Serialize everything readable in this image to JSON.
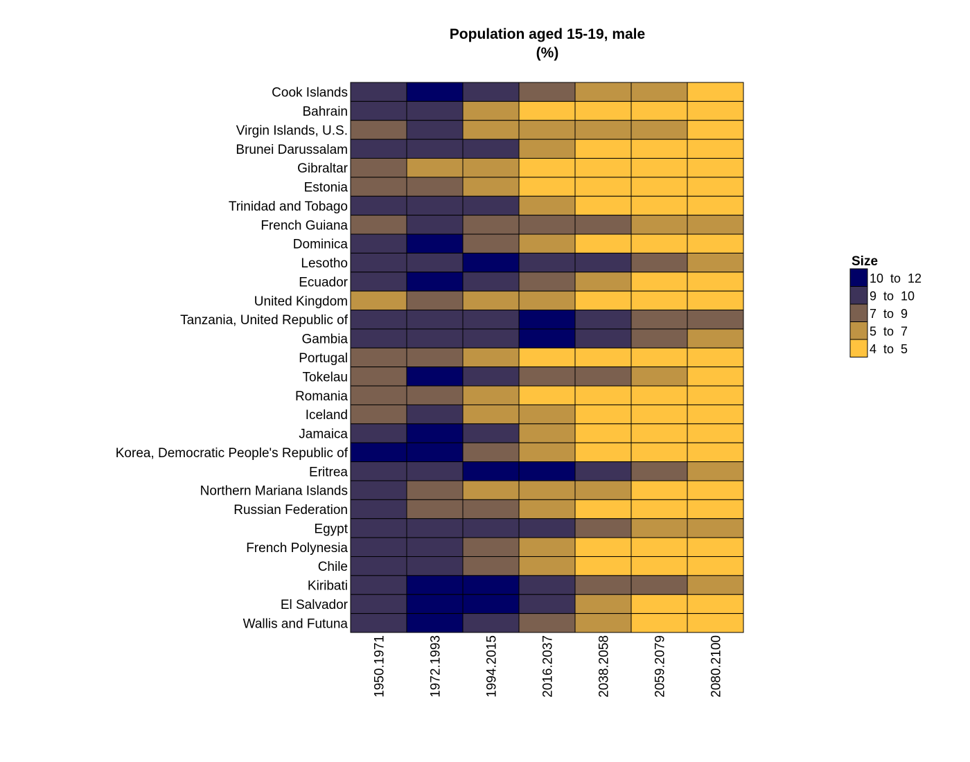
{
  "chart_data": {
    "type": "heatmap",
    "title": "Population aged 15-19, male",
    "subtitle": "(%)",
    "columns": [
      "1950.1971",
      "1972.1993",
      "1994.2015",
      "2016.2037",
      "2038.2058",
      "2059.2079",
      "2080.2100"
    ],
    "rows": [
      "Cook Islands",
      "Bahrain",
      "Virgin Islands, U.S.",
      "Brunei Darussalam",
      "Gibraltar",
      "Estonia",
      "Trinidad and Tobago",
      "French Guiana",
      "Dominica",
      "Lesotho",
      "Ecuador",
      "United Kingdom",
      "Tanzania, United Republic of",
      "Gambia",
      "Portugal",
      "Tokelau",
      "Romania",
      "Iceland",
      "Jamaica",
      "Korea, Democratic People's Republic of",
      "Eritrea",
      "Northern Mariana Islands",
      "Russian Federation",
      "Egypt",
      "French Polynesia",
      "Chile",
      "Kiribati",
      "El Salvador",
      "Wallis and Futuna"
    ],
    "bin_index_values": [
      [
        1,
        0,
        1,
        2,
        3,
        3,
        4
      ],
      [
        1,
        1,
        3,
        4,
        4,
        4,
        4
      ],
      [
        2,
        1,
        3,
        3,
        3,
        3,
        4
      ],
      [
        1,
        1,
        1,
        3,
        4,
        4,
        4
      ],
      [
        2,
        3,
        3,
        4,
        4,
        4,
        4
      ],
      [
        2,
        2,
        3,
        4,
        4,
        4,
        4
      ],
      [
        1,
        1,
        1,
        3,
        4,
        4,
        4
      ],
      [
        2,
        1,
        2,
        2,
        2,
        3,
        3
      ],
      [
        1,
        0,
        2,
        3,
        4,
        4,
        4
      ],
      [
        1,
        1,
        0,
        1,
        1,
        2,
        3
      ],
      [
        1,
        0,
        1,
        2,
        3,
        4,
        4
      ],
      [
        3,
        2,
        3,
        3,
        4,
        4,
        4
      ],
      [
        1,
        1,
        1,
        0,
        1,
        2,
        2
      ],
      [
        1,
        1,
        1,
        0,
        1,
        2,
        3
      ],
      [
        2,
        2,
        3,
        4,
        4,
        4,
        4
      ],
      [
        2,
        0,
        1,
        2,
        2,
        3,
        4
      ],
      [
        2,
        2,
        3,
        4,
        4,
        4,
        4
      ],
      [
        2,
        1,
        3,
        3,
        4,
        4,
        4
      ],
      [
        1,
        0,
        1,
        3,
        4,
        4,
        4
      ],
      [
        0,
        0,
        2,
        3,
        4,
        4,
        4
      ],
      [
        1,
        1,
        0,
        0,
        1,
        2,
        3
      ],
      [
        1,
        2,
        3,
        3,
        3,
        4,
        4
      ],
      [
        1,
        2,
        2,
        3,
        4,
        4,
        4
      ],
      [
        1,
        1,
        1,
        1,
        2,
        3,
        3
      ],
      [
        1,
        1,
        2,
        3,
        4,
        4,
        4
      ],
      [
        1,
        1,
        2,
        3,
        4,
        4,
        4
      ],
      [
        1,
        0,
        0,
        1,
        2,
        2,
        3
      ],
      [
        1,
        0,
        0,
        1,
        3,
        4,
        4
      ],
      [
        1,
        0,
        1,
        2,
        3,
        4,
        4
      ]
    ],
    "legend": {
      "title": "Size",
      "position": "right",
      "bins": [
        {
          "label": "10  to  12",
          "color": "#000066"
        },
        {
          "label": "9  to  10",
          "color": "#3d3359"
        },
        {
          "label": "7  to  9",
          "color": "#7b604f"
        },
        {
          "label": "5  to  7",
          "color": "#bf9444"
        },
        {
          "label": "4  to  5",
          "color": "#ffc33f"
        }
      ]
    },
    "grid": false
  }
}
